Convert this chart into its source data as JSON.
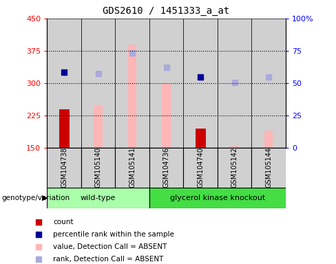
{
  "title": "GDS2610 / 1451333_a_at",
  "samples": [
    "GSM104738",
    "GSM105140",
    "GSM105141",
    "GSM104736",
    "GSM104740",
    "GSM105142",
    "GSM105144"
  ],
  "ylim_left": [
    150,
    450
  ],
  "ylim_right": [
    0,
    100
  ],
  "yticks_left": [
    150,
    225,
    300,
    375,
    450
  ],
  "yticks_right": [
    0,
    25,
    50,
    75,
    100
  ],
  "ytick_labels_right": [
    "0",
    "25",
    "50",
    "75",
    "100%"
  ],
  "bar_counts": [
    240,
    null,
    null,
    null,
    195,
    null,
    null
  ],
  "bar_absent_values": [
    null,
    247,
    390,
    300,
    null,
    155,
    190
  ],
  "percentile_dark": [
    325,
    null,
    null,
    null,
    315,
    null,
    null
  ],
  "percentile_light": [
    null,
    323,
    370,
    337,
    null,
    302,
    315
  ],
  "count_color": "#cc0000",
  "absent_bar_color": "#ffb6b6",
  "dark_square_color": "#000099",
  "light_square_color": "#aaaadd",
  "axis_bg": "#ffffff",
  "bar_bg_color": "#d0d0d0",
  "wt_color": "#aaffaa",
  "gk_color": "#44dd44",
  "legend_items": [
    {
      "label": "count",
      "color": "#cc0000"
    },
    {
      "label": "percentile rank within the sample",
      "color": "#000099"
    },
    {
      "label": "value, Detection Call = ABSENT",
      "color": "#ffb6b6"
    },
    {
      "label": "rank, Detection Call = ABSENT",
      "color": "#aaaadd"
    }
  ],
  "wt_samples": 3,
  "gk_samples": 4
}
